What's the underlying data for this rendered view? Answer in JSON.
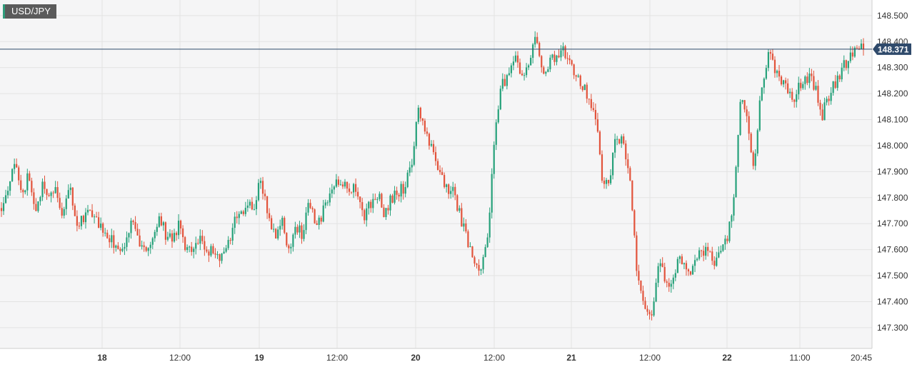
{
  "symbol": "USD/JPY",
  "current_price_label": "148.371",
  "colors": {
    "up": "#26a17a",
    "down": "#e2533b",
    "price_line": "#2f4a6b",
    "price_tag": "#2f4a6b",
    "plot_bg": "#f5f5f6",
    "grid": "#e3e3e3"
  },
  "chart_data": {
    "type": "candlestick",
    "title": "",
    "xlabel": "",
    "ylabel": "",
    "ylim": [
      147.22,
      148.56
    ],
    "y_ticks": [
      "148.500",
      "148.400",
      "148.300",
      "148.200",
      "148.100",
      "148.000",
      "147.900",
      "147.800",
      "147.700",
      "147.600",
      "147.500",
      "147.400",
      "147.300"
    ],
    "x_ticks": [
      {
        "label": "18",
        "bold": true
      },
      {
        "label": "12:00",
        "bold": false
      },
      {
        "label": "19",
        "bold": true
      },
      {
        "label": "12:00",
        "bold": false
      },
      {
        "label": "20",
        "bold": true
      },
      {
        "label": "12:00",
        "bold": false
      },
      {
        "label": "21",
        "bold": true
      },
      {
        "label": "12:00",
        "bold": false
      },
      {
        "label": "22",
        "bold": true
      },
      {
        "label": "11:00",
        "bold": false
      },
      {
        "label": "20:45",
        "bold": false
      }
    ],
    "current_price": 148.371,
    "grid": true,
    "price_path": [
      147.76,
      147.85,
      147.94,
      147.8,
      147.9,
      147.72,
      147.86,
      147.8,
      147.82,
      147.72,
      147.86,
      147.68,
      147.72,
      147.74,
      147.7,
      147.67,
      147.64,
      147.6,
      147.62,
      147.7,
      147.64,
      147.61,
      147.62,
      147.73,
      147.66,
      147.63,
      147.7,
      147.6,
      147.61,
      147.65,
      147.58,
      147.6,
      147.55,
      147.61,
      147.7,
      147.75,
      147.76,
      147.78,
      147.87,
      147.72,
      147.66,
      147.72,
      147.58,
      147.7,
      147.66,
      147.8,
      147.68,
      147.75,
      147.83,
      147.86,
      147.85,
      147.84,
      147.82,
      147.72,
      147.78,
      147.82,
      147.74,
      147.8,
      147.82,
      147.84,
      147.93,
      148.15,
      148.05,
      147.98,
      147.9,
      147.85,
      147.82,
      147.73,
      147.64,
      147.55,
      147.5,
      147.62,
      148.02,
      148.22,
      148.27,
      148.36,
      148.25,
      148.3,
      148.44,
      148.27,
      148.32,
      148.34,
      148.38,
      148.32,
      148.28,
      148.22,
      148.18,
      148.08,
      147.82,
      147.9,
      148.05,
      147.99,
      147.84,
      147.48,
      147.37,
      147.33,
      147.55,
      147.5,
      147.44,
      147.58,
      147.53,
      147.52,
      147.6,
      147.59,
      147.56,
      147.57,
      147.63,
      147.78,
      148.18,
      148.1,
      147.92,
      148.2,
      148.35,
      148.3,
      148.26,
      148.2,
      148.18,
      148.25,
      148.27,
      148.22,
      148.12,
      148.2,
      148.25,
      148.3,
      148.33,
      148.38,
      148.37
    ]
  }
}
